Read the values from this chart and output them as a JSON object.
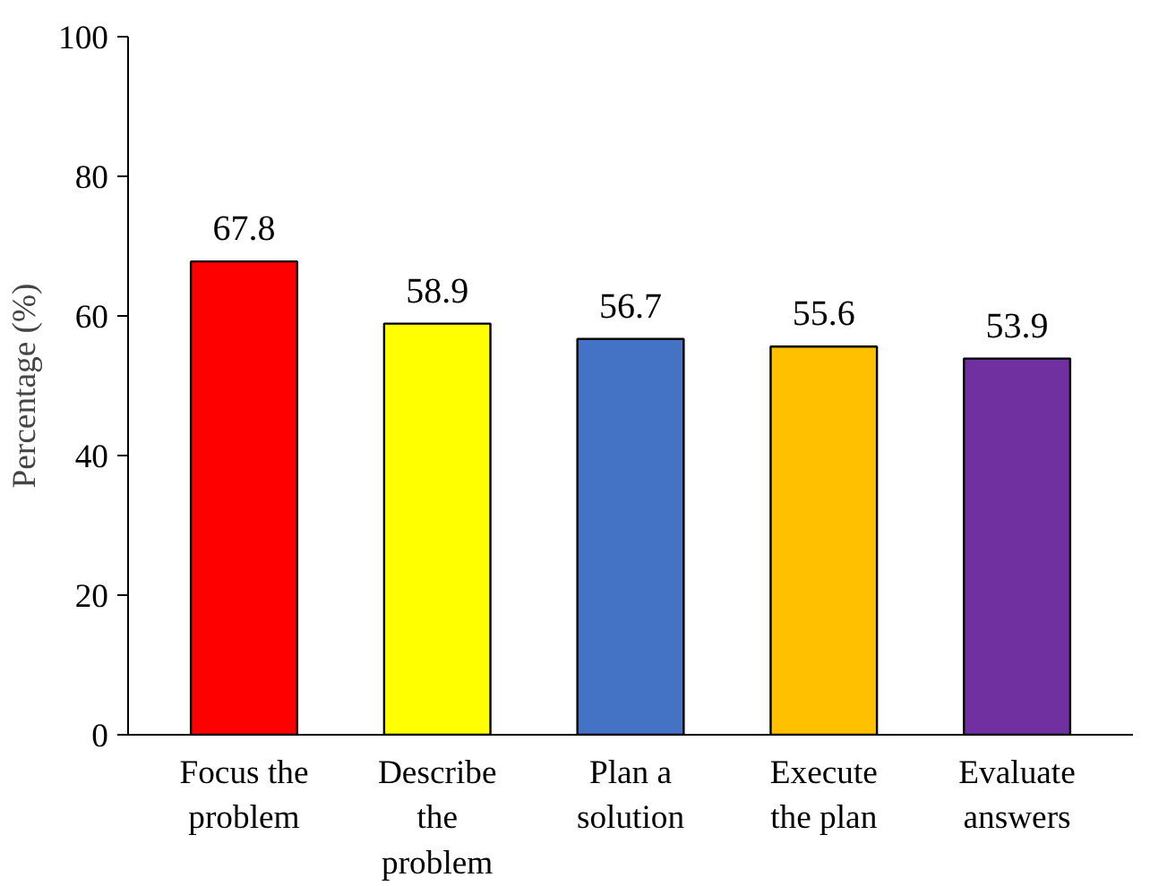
{
  "chart_data": {
    "type": "bar",
    "ylabel": "Percentage (%)",
    "categories": [
      "Focus the problem",
      "Describe the problem",
      "Plan a solution",
      "Execute the plan",
      "Evaluate answers"
    ],
    "values": [
      67.8,
      58.9,
      56.7,
      55.6,
      53.9
    ],
    "colors": [
      "#ff0000",
      "#ffff00",
      "#4472c4",
      "#ffc000",
      "#7030a0"
    ],
    "ylim": [
      0,
      100
    ],
    "yticks": [
      0,
      20,
      40,
      60,
      80,
      100
    ],
    "grid": false,
    "data_labels": true
  }
}
